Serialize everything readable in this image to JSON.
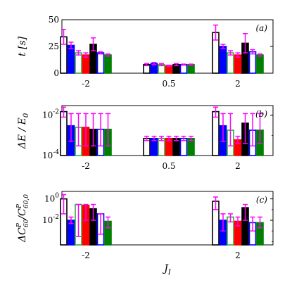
{
  "chart_data": [
    {
      "type": "bar",
      "panel_label": "(a)",
      "ylabel": "t [s]",
      "yscale": "linear",
      "ylim": [
        0,
        50
      ],
      "yticks": [
        "0",
        "25",
        "50"
      ],
      "xlabel": "",
      "categories": [
        "-2",
        "0.5",
        "2"
      ],
      "colors": [
        "#000000",
        "#0000ff",
        "#33aa33",
        "#ff0000",
        "#000000",
        "#0000ff",
        "#008000"
      ],
      "filled": [
        false,
        true,
        false,
        true,
        true,
        false,
        true
      ],
      "values": [
        [
          34,
          26,
          19,
          17,
          27,
          19,
          17
        ],
        [
          8,
          9,
          8,
          7,
          8,
          8,
          8
        ],
        [
          38,
          25,
          19,
          17,
          28,
          20,
          17
        ]
      ],
      "errors": [
        [
          7,
          3,
          2,
          2,
          6,
          1,
          1
        ],
        [
          1,
          1,
          1,
          0.5,
          1,
          0.5,
          0.5
        ],
        [
          7,
          2,
          2,
          2,
          9,
          2,
          1
        ]
      ]
    },
    {
      "type": "bar",
      "panel_label": "(b)",
      "ylabel": "ΔE / E0",
      "yscale": "log",
      "ylim": [
        0.0001,
        0.03
      ],
      "yticks": [
        "10^-4",
        "10^-2"
      ],
      "xlabel": "",
      "categories": [
        "-2",
        "0.5",
        "2"
      ],
      "colors": [
        "#000000",
        "#0000ff",
        "#33aa33",
        "#ff0000",
        "#000000",
        "#0000ff",
        "#008000"
      ],
      "filled": [
        false,
        true,
        false,
        true,
        true,
        false,
        true
      ],
      "values": [
        [
          0.015,
          0.003,
          0.0025,
          0.0025,
          0.002,
          0.002,
          0.002
        ],
        [
          0.0007,
          0.0007,
          0.0007,
          0.0007,
          0.0007,
          0.0007,
          0.0007
        ],
        [
          0.015,
          0.003,
          0.0018,
          0.0006,
          0.004,
          0.0018,
          0.0018
        ]
      ],
      "errors_low": [
        [
          0.008,
          0.0005,
          0.0003,
          0.0003,
          0.0003,
          0.0003,
          0.0003
        ],
        [
          0.00055,
          0.00055,
          0.00055,
          0.00055,
          0.00055,
          0.00055,
          0.00055
        ],
        [
          0.008,
          0.0005,
          0.0003,
          0.0004,
          0.0004,
          0.0003,
          0.0004
        ]
      ],
      "errors_high": [
        [
          0.025,
          0.012,
          0.012,
          0.012,
          0.012,
          0.012,
          0.012
        ],
        [
          0.0009,
          0.0009,
          0.0009,
          0.0009,
          0.0009,
          0.0009,
          0.0009
        ],
        [
          0.025,
          0.012,
          0.012,
          0.0009,
          0.012,
          0.012,
          0.012
        ]
      ]
    },
    {
      "type": "bar",
      "panel_label": "(c)",
      "ylabel": "ΔC60^P / C60,0^P",
      "yscale": "log",
      "ylim": [
        5e-05,
        5
      ],
      "yticks": [
        "10^-2",
        "10^0"
      ],
      "xlabel": "J_I",
      "categories": [
        "-2",
        "2"
      ],
      "colors": [
        "#000000",
        "#0000ff",
        "#33aa33",
        "#ff0000",
        "#000000",
        "#0000ff",
        "#008000"
      ],
      "filled": [
        false,
        true,
        false,
        true,
        true,
        false,
        true
      ],
      "values": [
        [
          1.0,
          0.01,
          0.3,
          0.25,
          0.12,
          0.04,
          0.008
        ],
        [
          0.6,
          0.01,
          0.02,
          0.008,
          0.15,
          0.006,
          0.006
        ]
      ],
      "errors_low": [
        [
          0.04,
          0.005,
          0.0003,
          0.01,
          0.01,
          0.0005,
          0.002
        ],
        [
          0.1,
          0.001,
          0.007,
          0.003,
          0.01,
          0.001,
          0.002
        ]
      ],
      "errors_high": [
        [
          2.5,
          0.02,
          0.3,
          0.3,
          0.3,
          0.04,
          0.02
        ],
        [
          1.5,
          0.04,
          0.04,
          0.02,
          0.3,
          0.02,
          0.02
        ]
      ]
    }
  ]
}
